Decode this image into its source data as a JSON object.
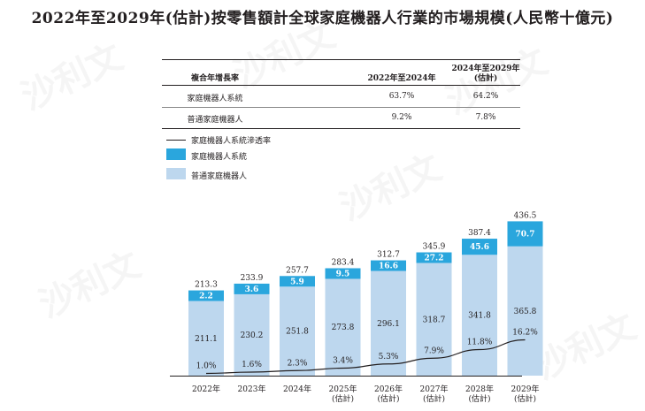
{
  "title": "2022年至2029年(估計)按零售額計全球家庭機器人行業的市場規模(人民幣十億元)",
  "watermark": "沙利文",
  "cagr_table": {
    "header": {
      "label": "複合年增長率",
      "col1": "2022年至2024年",
      "col2_line1": "2024年至2029年",
      "col2_line2": "(估計)"
    },
    "rows": [
      {
        "label": "家庭機器人系統",
        "v1": "63.7%",
        "v2": "64.2%"
      },
      {
        "label": "普通家庭機器人",
        "v1": "9.2%",
        "v2": "7.8%"
      }
    ]
  },
  "legend": {
    "line": "家庭機器人系統滲透率",
    "system": "家庭機器人系統",
    "regular": "普通家庭機器人"
  },
  "colors": {
    "system": "#2aa6dd",
    "regular": "#bdd7ee",
    "line": "#231f20"
  },
  "chart_data": {
    "type": "bar",
    "stacked": true,
    "categories": [
      {
        "year": "2022年",
        "note": ""
      },
      {
        "year": "2023年",
        "note": ""
      },
      {
        "year": "2024年",
        "note": ""
      },
      {
        "year": "2025年",
        "note": "(估計)"
      },
      {
        "year": "2026年",
        "note": "(估計)"
      },
      {
        "year": "2027年",
        "note": "(估計)"
      },
      {
        "year": "2028年",
        "note": "(估計)"
      },
      {
        "year": "2029年",
        "note": "(估計)"
      }
    ],
    "series": [
      {
        "name": "普通家庭機器人",
        "values": [
          211.1,
          230.2,
          251.8,
          273.8,
          296.1,
          318.7,
          341.8,
          365.8
        ]
      },
      {
        "name": "家庭機器人系統",
        "values": [
          2.2,
          3.6,
          5.9,
          9.5,
          16.6,
          27.2,
          45.6,
          70.7
        ]
      }
    ],
    "totals": [
      213.3,
      233.9,
      257.7,
      283.4,
      312.7,
      345.9,
      387.4,
      436.5
    ],
    "line_series": {
      "name": "家庭機器人系統滲透率",
      "values": [
        1.0,
        1.6,
        2.3,
        3.4,
        5.3,
        7.9,
        11.8,
        16.2
      ]
    },
    "line_labels": [
      "1.0%",
      "1.6%",
      "2.3%",
      "3.4%",
      "5.3%",
      "7.9%",
      "11.8%",
      "16.2%"
    ],
    "ylim": [
      0,
      450
    ]
  }
}
